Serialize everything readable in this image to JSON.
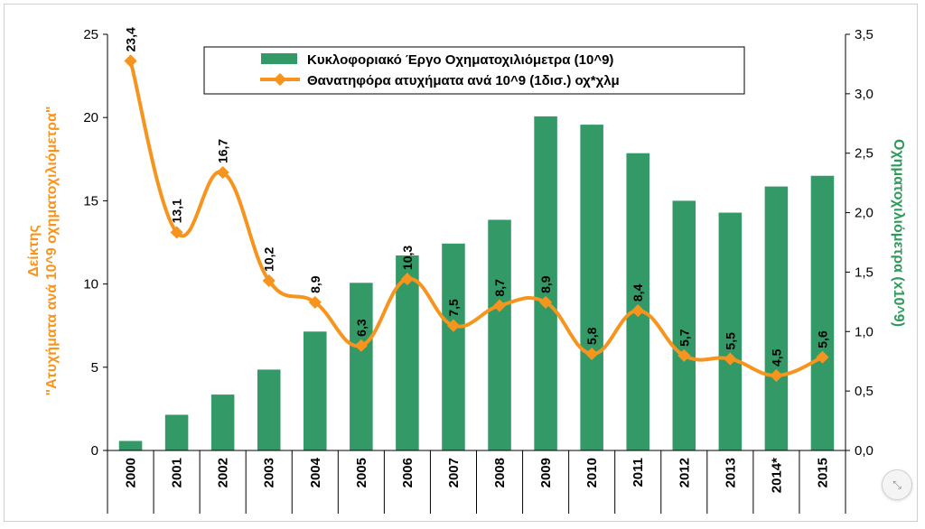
{
  "chart_data": {
    "type": "bar",
    "categories": [
      "2000",
      "2001",
      "2002",
      "2003",
      "2004",
      "2005",
      "2006",
      "2007",
      "2008",
      "2009",
      "2010",
      "2011",
      "2012",
      "2013",
      "2014*",
      "2015"
    ],
    "series": [
      {
        "name": "Κυκλοφοριακό Έργο Οχηματοχιλιόμετρα (10^9)",
        "kind": "bar",
        "axis": "right",
        "color": "#339966",
        "values": [
          0.08,
          0.3,
          0.47,
          0.68,
          1.0,
          1.41,
          1.64,
          1.74,
          1.94,
          2.81,
          2.74,
          2.5,
          2.1,
          2.0,
          2.22,
          2.31
        ]
      },
      {
        "name": "Θανατηφόρα ατυχήματα ανά 10^9 (1δισ.) οχ*χλμ",
        "kind": "line",
        "axis": "left",
        "color": "#f7941d",
        "values": [
          23.4,
          13.1,
          16.7,
          10.2,
          8.9,
          6.3,
          10.3,
          7.5,
          8.7,
          8.9,
          5.8,
          8.4,
          5.7,
          5.5,
          4.5,
          5.6
        ],
        "labels": [
          "23,4",
          "13,1",
          "16,7",
          "10,2",
          "8,9",
          "6,3",
          "10,3",
          "7,5",
          "8,7",
          "8,9",
          "5,8",
          "8,4",
          "5,7",
          "5,5",
          "4,5",
          "5,6"
        ]
      }
    ],
    "ylabel_left_line1": "Δείκτης",
    "ylabel_left_line2": "\"Ατυχήματα ανά 10^9  οχηματοχιλιόμετρα\"",
    "ylabel_right": "Οχηματοχιλιόμετρα (x10^9)",
    "ylim_left": [
      0,
      25
    ],
    "ylim_right": [
      0,
      3.5
    ],
    "yticks_left": [
      "0",
      "5",
      "10",
      "15",
      "20",
      "25"
    ],
    "yticks_right": [
      "0,0",
      "0,5",
      "1,0",
      "1,5",
      "2,0",
      "2,5",
      "3,0",
      "3,5"
    ],
    "legend_position": "top-center",
    "grid": false
  },
  "ui": {
    "expand_icon": "⤡"
  }
}
